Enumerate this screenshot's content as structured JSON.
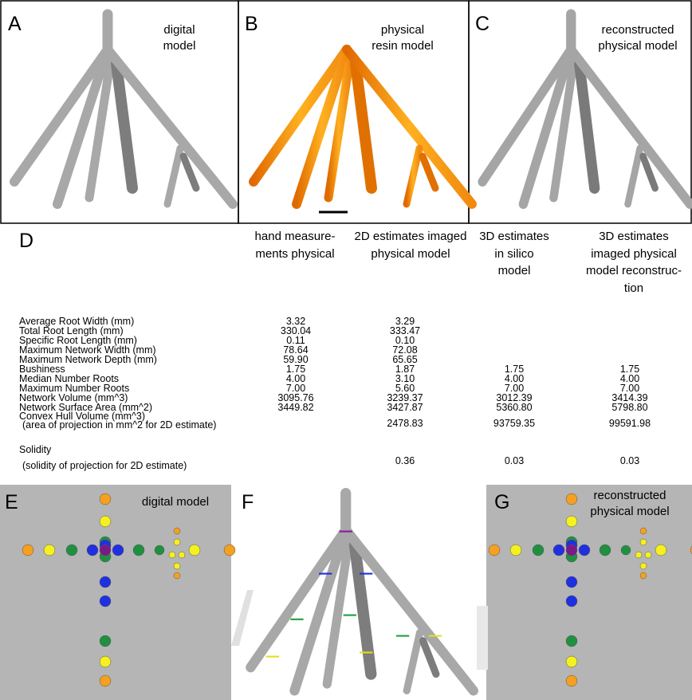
{
  "panels": [
    {
      "label": "A",
      "caption": [
        "digital",
        "model"
      ]
    },
    {
      "label": "B",
      "caption": [
        "physical",
        "resin model"
      ]
    },
    {
      "label": "C",
      "caption": [
        "reconstructed",
        "physical model"
      ]
    },
    {
      "label": "E",
      "caption": [
        "digital model"
      ]
    },
    {
      "label": "F"
    },
    {
      "label": "G",
      "caption": [
        "reconstructed",
        "physical model"
      ]
    }
  ],
  "table": {
    "label": "D",
    "headers": [
      [
        "hand measure-",
        "ments physical"
      ],
      [
        "2D estimates imaged",
        "physical model"
      ],
      [
        "3D estimates",
        "in silico",
        "model"
      ],
      [
        "3D estimates",
        "imaged physical",
        "model reconstruc-",
        "tion"
      ]
    ],
    "rows": [
      {
        "label": "Average Root Width (mm)",
        "values": [
          "3.32",
          "3.29",
          null,
          null
        ]
      },
      {
        "label": "Total Root Length (mm)",
        "values": [
          "330.04",
          "333.47",
          null,
          null
        ]
      },
      {
        "label": "Specific Root Length (mm)",
        "values": [
          "0.11",
          "0.10",
          null,
          null
        ]
      },
      {
        "label": "Maximum Network Width (mm)",
        "values": [
          "78.64",
          "72.08",
          null,
          null
        ]
      },
      {
        "label": "Maximum Network Depth (mm)",
        "values": [
          "59.90",
          "65.65",
          null,
          null
        ]
      },
      {
        "label": "Bushiness",
        "values": [
          "1.75",
          "1.87",
          "1.75",
          "1.75"
        ]
      },
      {
        "label": "Median Number Roots",
        "values": [
          "4.00",
          "3.10",
          "4.00",
          "4.00"
        ]
      },
      {
        "label": "Maximum Number Roots",
        "values": [
          "7.00",
          "5.60",
          "7.00",
          "7.00"
        ]
      },
      {
        "label": "Network Volume (mm^3)",
        "values": [
          "3095.76",
          "3239.37",
          "3012.39",
          "3414.39"
        ]
      },
      {
        "label": "Network Surface Area (mm^2)",
        "values": [
          "3449.82",
          "3427.87",
          "5360.80",
          "5798.80"
        ]
      },
      {
        "label": "Convex Hull Volume (mm^3)",
        "note": "(area of projection in mm^2 for 2D estimate)",
        "values": [
          null,
          "2478.83",
          "93759.35",
          "99591.98"
        ]
      },
      {
        "label": "Solidity",
        "note": "(solidity of projection for 2D estimate)",
        "values": [
          null,
          "0.36",
          "0.03",
          "0.03"
        ]
      }
    ]
  }
}
